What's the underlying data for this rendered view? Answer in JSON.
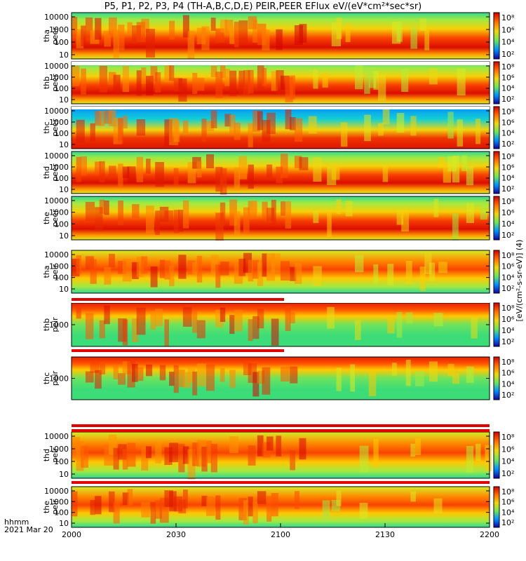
{
  "title": "P5, P1, P2, P3, P4 (TH-A,B,C,D,E) PEIR,PEER EFlux eV/(eV*cm²*sec*sr)",
  "footer": {
    "time_label": "hhmm",
    "date_label": "2021 Mar 20"
  },
  "colorbar_unit_label": "[eV/(cm²-s-sr-eV)] (4)",
  "chart_data": {
    "type": "heatmap",
    "x_axis": {
      "ticks": [
        "2000",
        "2030",
        "2100",
        "2130",
        "2200"
      ]
    },
    "colorbar": {
      "scale": "log",
      "ticks": [
        "10⁸",
        "10⁶",
        "10⁴",
        "10²"
      ],
      "colormap": "rainbow (blue-green-yellow-red)"
    },
    "panels": [
      {
        "name": "tha peer",
        "y_ticks": [
          "10000",
          "1000",
          "100",
          "10"
        ],
        "y_scale": "log"
      },
      {
        "name": "thb peer",
        "y_ticks": [
          "10000",
          "1000",
          "100",
          "10"
        ],
        "y_scale": "log"
      },
      {
        "name": "thc peer",
        "y_ticks": [
          "10000",
          "1000",
          "100",
          "10"
        ],
        "y_scale": "log"
      },
      {
        "name": "thd peer",
        "y_ticks": [
          "10000",
          "1000",
          "100",
          "10"
        ],
        "y_scale": "log"
      },
      {
        "name": "the peer",
        "y_ticks": [
          "10000",
          "1000",
          "100",
          "10"
        ],
        "y_scale": "log"
      },
      {
        "name": "tha peir",
        "y_ticks": [
          "10000",
          "1000",
          "100",
          "10"
        ],
        "y_scale": "log"
      },
      {
        "name": "thb peir",
        "y_ticks": [
          "1000"
        ],
        "y_scale": "log"
      },
      {
        "name": "thc peir",
        "y_ticks": [
          "1000"
        ],
        "y_scale": "log"
      },
      {
        "name": "thd peir",
        "y_ticks": [
          "10000",
          "1000",
          "100",
          "10"
        ],
        "y_scale": "log"
      },
      {
        "name": "the peir",
        "y_ticks": [
          "10000",
          "1000",
          "100",
          "10"
        ],
        "y_scale": "log"
      }
    ]
  }
}
